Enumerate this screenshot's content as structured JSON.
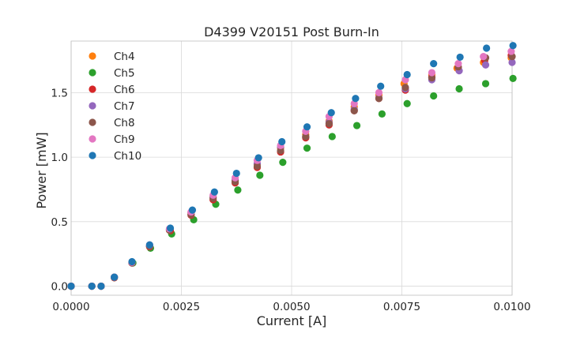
{
  "chart_data": {
    "type": "scatter",
    "title": "D4399 V20151 Post Burn-In",
    "xlabel": "Current [A]",
    "ylabel": "Power [mW]",
    "xlim": [
      0.0,
      0.01
    ],
    "ylim": [
      -0.07,
      1.9
    ],
    "xticks": [
      0.0,
      0.0025,
      0.005,
      0.0075,
      0.01
    ],
    "xtick_labels": [
      "0.0000",
      "0.0025",
      "0.0050",
      "0.0075",
      "0.0100"
    ],
    "yticks": [
      0.0,
      0.5,
      1.0,
      1.5
    ],
    "ytick_labels": [
      "0.0",
      "0.5",
      "1.0",
      "1.5"
    ],
    "grid": true,
    "legend_position": "top-left",
    "series": [
      {
        "name": "Ch4",
        "color": "#ff7f0e",
        "points": [
          [
            0.0,
            0.0
          ],
          [
            0.00047,
            0.0
          ],
          [
            0.00068,
            0.0
          ],
          [
            0.00098,
            0.07
          ],
          [
            0.00138,
            0.185
          ],
          [
            0.00178,
            0.31
          ],
          [
            0.00223,
            0.435
          ],
          [
            0.00272,
            0.565
          ],
          [
            0.00322,
            0.69
          ],
          [
            0.00372,
            0.82
          ],
          [
            0.00422,
            0.945
          ],
          [
            0.00475,
            1.07
          ],
          [
            0.00532,
            1.175
          ],
          [
            0.00585,
            1.28
          ],
          [
            0.00642,
            1.39
          ],
          [
            0.00698,
            1.48
          ],
          [
            0.00755,
            1.57
          ],
          [
            0.00818,
            1.64
          ],
          [
            0.00875,
            1.69
          ],
          [
            0.00935,
            1.735
          ],
          [
            0.00998,
            1.77
          ]
        ]
      },
      {
        "name": "Ch5",
        "color": "#2ca02c",
        "points": [
          [
            0.0,
            0.0
          ],
          [
            0.00047,
            0.0
          ],
          [
            0.00068,
            0.0
          ],
          [
            0.00098,
            0.065
          ],
          [
            0.0014,
            0.18
          ],
          [
            0.0018,
            0.295
          ],
          [
            0.00228,
            0.405
          ],
          [
            0.00278,
            0.515
          ],
          [
            0.00328,
            0.635
          ],
          [
            0.00378,
            0.745
          ],
          [
            0.00428,
            0.86
          ],
          [
            0.0048,
            0.96
          ],
          [
            0.00535,
            1.07
          ],
          [
            0.00592,
            1.16
          ],
          [
            0.00648,
            1.245
          ],
          [
            0.00705,
            1.335
          ],
          [
            0.00762,
            1.415
          ],
          [
            0.00822,
            1.475
          ],
          [
            0.0088,
            1.53
          ],
          [
            0.0094,
            1.57
          ],
          [
            0.01002,
            1.61
          ]
        ]
      },
      {
        "name": "Ch6",
        "color": "#d62728",
        "points": [
          [
            0.0,
            0.0
          ],
          [
            0.00047,
            0.0
          ],
          [
            0.00068,
            0.0
          ],
          [
            0.00098,
            0.065
          ],
          [
            0.00138,
            0.18
          ],
          [
            0.00178,
            0.305
          ],
          [
            0.00225,
            0.43
          ],
          [
            0.00272,
            0.55
          ],
          [
            0.00322,
            0.67
          ],
          [
            0.00372,
            0.8
          ],
          [
            0.00422,
            0.92
          ],
          [
            0.00475,
            1.04
          ],
          [
            0.00532,
            1.15
          ],
          [
            0.00585,
            1.25
          ],
          [
            0.00642,
            1.36
          ],
          [
            0.00698,
            1.455
          ],
          [
            0.00758,
            1.52
          ],
          [
            0.00818,
            1.62
          ],
          [
            0.00878,
            1.695
          ],
          [
            0.00938,
            1.75
          ],
          [
            0.00998,
            1.79
          ]
        ]
      },
      {
        "name": "Ch7",
        "color": "#9467bd",
        "points": [
          [
            0.0,
            0.0
          ],
          [
            0.00047,
            0.0
          ],
          [
            0.00068,
            0.0
          ],
          [
            0.00098,
            0.07
          ],
          [
            0.00138,
            0.185
          ],
          [
            0.00178,
            0.31
          ],
          [
            0.00223,
            0.44
          ],
          [
            0.00272,
            0.57
          ],
          [
            0.00322,
            0.69
          ],
          [
            0.00372,
            0.825
          ],
          [
            0.00422,
            0.95
          ],
          [
            0.00475,
            1.08
          ],
          [
            0.00532,
            1.16
          ],
          [
            0.00585,
            1.27
          ],
          [
            0.00642,
            1.37
          ],
          [
            0.00698,
            1.46
          ],
          [
            0.00758,
            1.53
          ],
          [
            0.00818,
            1.6
          ],
          [
            0.0088,
            1.67
          ],
          [
            0.0094,
            1.715
          ],
          [
            0.01,
            1.735
          ]
        ]
      },
      {
        "name": "Ch8",
        "color": "#8c564b",
        "points": [
          [
            0.0,
            0.0
          ],
          [
            0.00047,
            0.0
          ],
          [
            0.00068,
            0.0
          ],
          [
            0.00098,
            0.07
          ],
          [
            0.00138,
            0.18
          ],
          [
            0.00178,
            0.31
          ],
          [
            0.00223,
            0.435
          ],
          [
            0.00272,
            0.555
          ],
          [
            0.00322,
            0.68
          ],
          [
            0.00372,
            0.81
          ],
          [
            0.00422,
            0.93
          ],
          [
            0.00475,
            1.05
          ],
          [
            0.00532,
            1.16
          ],
          [
            0.00585,
            1.26
          ],
          [
            0.00642,
            1.36
          ],
          [
            0.00698,
            1.455
          ],
          [
            0.00758,
            1.54
          ],
          [
            0.00818,
            1.615
          ],
          [
            0.00878,
            1.7
          ],
          [
            0.0094,
            1.77
          ],
          [
            0.01,
            1.78
          ]
        ]
      },
      {
        "name": "Ch9",
        "color": "#e377c2",
        "points": [
          [
            0.0,
            0.0
          ],
          [
            0.00047,
            0.0
          ],
          [
            0.00068,
            0.0
          ],
          [
            0.00098,
            0.07
          ],
          [
            0.00138,
            0.185
          ],
          [
            0.00178,
            0.32
          ],
          [
            0.00223,
            0.445
          ],
          [
            0.00272,
            0.575
          ],
          [
            0.00322,
            0.705
          ],
          [
            0.00372,
            0.84
          ],
          [
            0.00422,
            0.975
          ],
          [
            0.00475,
            1.09
          ],
          [
            0.00532,
            1.2
          ],
          [
            0.00585,
            1.315
          ],
          [
            0.00642,
            1.415
          ],
          [
            0.00698,
            1.5
          ],
          [
            0.00758,
            1.6
          ],
          [
            0.00818,
            1.655
          ],
          [
            0.00878,
            1.725
          ],
          [
            0.00935,
            1.78
          ],
          [
            0.00998,
            1.82
          ]
        ]
      },
      {
        "name": "Ch10",
        "color": "#1f77b4",
        "points": [
          [
            0.0,
            0.0
          ],
          [
            0.00047,
            0.0
          ],
          [
            0.00068,
            0.0
          ],
          [
            0.00098,
            0.07
          ],
          [
            0.00138,
            0.19
          ],
          [
            0.00178,
            0.32
          ],
          [
            0.00225,
            0.45
          ],
          [
            0.00275,
            0.59
          ],
          [
            0.00325,
            0.73
          ],
          [
            0.00375,
            0.875
          ],
          [
            0.00425,
            0.995
          ],
          [
            0.00478,
            1.12
          ],
          [
            0.00535,
            1.235
          ],
          [
            0.0059,
            1.345
          ],
          [
            0.00645,
            1.455
          ],
          [
            0.00702,
            1.55
          ],
          [
            0.00762,
            1.64
          ],
          [
            0.00822,
            1.725
          ],
          [
            0.00882,
            1.775
          ],
          [
            0.00942,
            1.845
          ],
          [
            0.01002,
            1.865
          ]
        ]
      }
    ]
  }
}
